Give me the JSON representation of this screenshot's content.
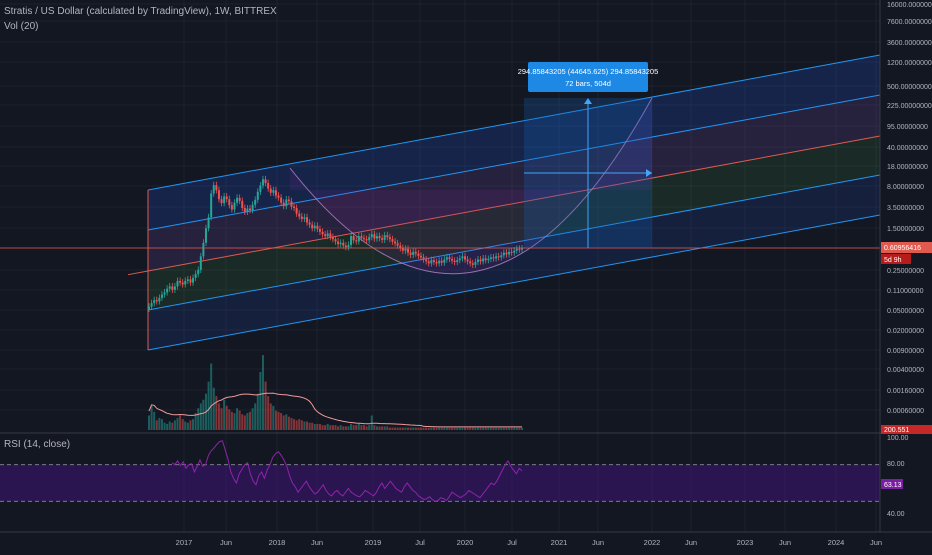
{
  "header": {
    "symbol_line": "Stratis / US Dollar (calculated by TradingView), 1W, BITTREX",
    "volume_label": "Vol (20)",
    "rsi_label": "RSI (14, close)"
  },
  "colors": {
    "background": "#131722",
    "grid": "#1e222d",
    "up_candle": "#26a69a",
    "down_candle": "#ef5350",
    "channel_line": "#2196f3",
    "channel_mid": "#e05a4f",
    "rsi_line": "#8e24aa",
    "rsi_band": "#4a148c",
    "price_tag": "#e05a4f",
    "measure_box": "#1565c0"
  },
  "chart_data": {
    "type": "candlestick",
    "price_axis": {
      "scale": "log",
      "tick_labels": [
        "16000.00000000",
        "7600.00000000",
        "3600.00000000",
        "1200.00000000",
        "500.00000000",
        "225.00000000",
        "95.00000000",
        "40.00000000",
        "18.00000000",
        "8.00000000",
        "3.50000000",
        "1.50000000",
        "0.25000000",
        "0.11000000",
        "0.05000000",
        "0.02000000",
        "0.00900000",
        "0.00400000",
        "0.00160000",
        "0.00060000"
      ]
    },
    "current_price": "0.60956416",
    "countdown": "5d 9h",
    "volume_axis_label": "200.551",
    "measure": {
      "line1": "294.85843205 (44645.625) 294.85843205",
      "line2": "72 bars, 504d"
    },
    "time_axis": [
      "2017",
      "Jun",
      "2018",
      "Jun",
      "2019",
      "Jul",
      "2020",
      "Jul",
      "2021",
      "Jun",
      "2022",
      "Jun",
      "2023",
      "Jun",
      "2024",
      "Jun"
    ],
    "rsi": {
      "tick_labels": [
        "100.00",
        "80.00",
        "40.00"
      ],
      "current_value": "63.13",
      "upper_band": 70,
      "lower_band": 30
    },
    "weekly_closes": [
      0.038,
      0.045,
      0.052,
      0.049,
      0.058,
      0.068,
      0.075,
      0.09,
      0.1,
      0.085,
      0.1,
      0.13,
      0.12,
      0.11,
      0.13,
      0.14,
      0.12,
      0.15,
      0.18,
      0.22,
      0.42,
      0.8,
      1.6,
      2.7,
      8.4,
      12.5,
      9.8,
      6.4,
      5.3,
      7.3,
      6.4,
      4.8,
      3.9,
      5.4,
      6.8,
      5.9,
      4.2,
      3.5,
      4.1,
      3.8,
      4.9,
      6.2,
      9.1,
      12.3,
      16.5,
      13.8,
      10.6,
      8.7,
      9.8,
      7.6,
      6.9,
      5.4,
      4.6,
      6.3,
      5.8,
      4.5,
      4.2,
      3.2,
      2.8,
      2.5,
      2.7,
      2.1,
      1.9,
      1.6,
      1.8,
      1.55,
      1.35,
      1.2,
      1.1,
      1.25,
      1.05,
      0.95,
      0.85,
      0.75,
      0.8,
      0.7,
      0.65,
      0.72,
      1.1,
      0.9,
      0.85,
      1.1,
      1.0,
      0.95,
      0.9,
      1.05,
      1.2,
      0.98,
      1.1,
      1.0,
      0.92,
      1.15,
      1.05,
      0.95,
      0.85,
      0.78,
      0.7,
      0.62,
      0.55,
      0.6,
      0.5,
      0.45,
      0.52,
      0.48,
      0.43,
      0.4,
      0.36,
      0.33,
      0.3,
      0.35,
      0.32,
      0.3,
      0.34,
      0.31,
      0.36,
      0.4,
      0.37,
      0.34,
      0.32,
      0.35,
      0.38,
      0.42,
      0.36,
      0.33,
      0.3,
      0.28,
      0.32,
      0.36,
      0.33,
      0.38,
      0.35,
      0.37,
      0.4,
      0.38,
      0.42,
      0.4,
      0.44,
      0.5,
      0.46,
      0.52,
      0.5,
      0.55,
      0.6,
      0.58,
      0.61
    ],
    "weekly_volumes": [
      12,
      20,
      15,
      8,
      10,
      9,
      6,
      5,
      7,
      6,
      8,
      10,
      12,
      9,
      7,
      6,
      8,
      9,
      14,
      18,
      22,
      25,
      30,
      40,
      55,
      35,
      28,
      22,
      18,
      25,
      20,
      17,
      15,
      14,
      18,
      16,
      13,
      12,
      14,
      15,
      18,
      22,
      30,
      48,
      62,
      40,
      28,
      22,
      20,
      16,
      15,
      14,
      12,
      13,
      11,
      10,
      9,
      8,
      9,
      8,
      7,
      7,
      6,
      6,
      5,
      5,
      5,
      4,
      4,
      5,
      4,
      4,
      4,
      3,
      4,
      3,
      3,
      3,
      5,
      4,
      4,
      5,
      4,
      4,
      3,
      4,
      12,
      4,
      3,
      3,
      3,
      3,
      3,
      2,
      2,
      2,
      2,
      2,
      2,
      2,
      2,
      2,
      2,
      2,
      2,
      2,
      2,
      2,
      2,
      2,
      2,
      2,
      2,
      2,
      2,
      2,
      2,
      2,
      2,
      2,
      2,
      2,
      2,
      2,
      2,
      2,
      2,
      2,
      2,
      2,
      2,
      2,
      2,
      2,
      2,
      2,
      2,
      2,
      2,
      2,
      2,
      2,
      2,
      2,
      2
    ],
    "rsi_values": [
      72,
      70,
      74,
      69,
      73,
      66,
      70,
      71,
      62,
      68,
      75,
      68,
      70,
      80,
      85,
      88,
      92,
      95,
      96,
      86,
      76,
      62,
      55,
      50,
      60,
      65,
      70,
      72,
      60,
      52,
      48,
      58,
      62,
      55,
      64,
      70,
      78,
      82,
      84,
      80,
      75,
      68,
      58,
      50,
      46,
      40,
      44,
      48,
      52,
      46,
      42,
      38,
      40,
      44,
      48,
      42,
      38,
      36,
      40,
      42,
      38,
      36,
      40,
      44,
      40,
      38,
      36,
      35,
      38,
      42,
      40,
      38,
      36,
      40,
      46,
      50,
      44,
      48,
      52,
      48,
      44,
      42,
      40,
      46,
      50,
      46,
      42,
      40,
      36,
      34,
      32,
      33,
      35,
      32,
      30,
      31,
      34,
      33,
      31,
      35,
      40,
      38,
      36,
      34,
      36,
      38,
      42,
      40,
      38,
      36,
      34,
      38,
      42,
      46,
      50,
      48,
      52,
      58,
      64,
      70,
      74,
      68,
      64,
      60,
      66,
      63
    ]
  }
}
